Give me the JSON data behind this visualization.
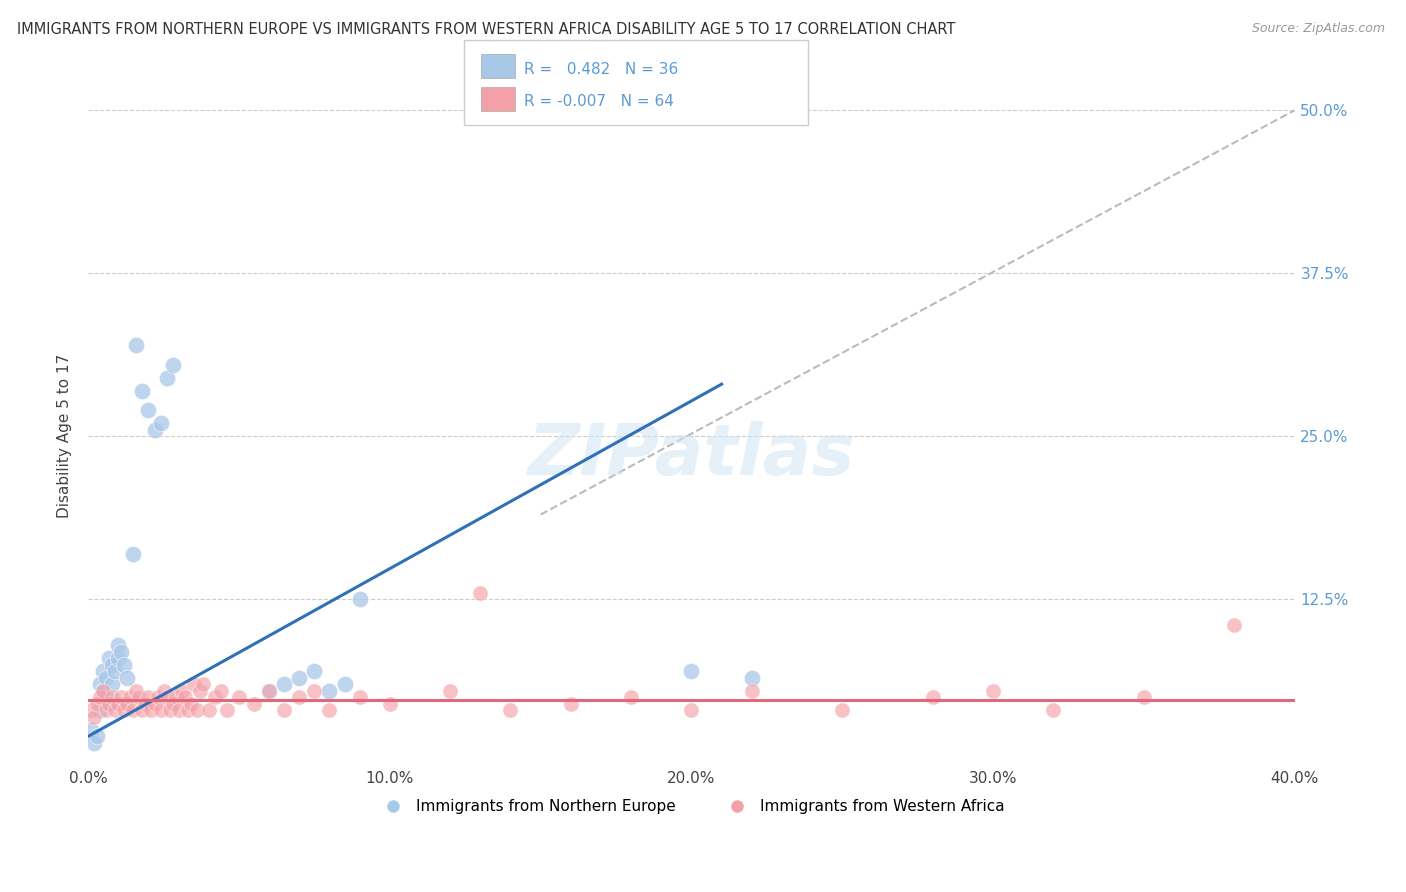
{
  "title": "IMMIGRANTS FROM NORTHERN EUROPE VS IMMIGRANTS FROM WESTERN AFRICA DISABILITY AGE 5 TO 17 CORRELATION CHART",
  "source": "Source: ZipAtlas.com",
  "ylabel": "Disability Age 5 to 17",
  "xlim": [
    0.0,
    0.4
  ],
  "ylim": [
    0.0,
    0.5
  ],
  "xticks": [
    0.0,
    0.1,
    0.2,
    0.3,
    0.4
  ],
  "yticks": [
    0.0,
    0.125,
    0.25,
    0.375,
    0.5
  ],
  "xticklabels": [
    "0.0%",
    "10.0%",
    "20.0%",
    "30.0%",
    "40.0%"
  ],
  "yticklabels_right": [
    "",
    "12.5%",
    "25.0%",
    "37.5%",
    "50.0%"
  ],
  "legend_labels": [
    "Immigrants from Northern Europe",
    "Immigrants from Western Africa"
  ],
  "R_blue": 0.482,
  "N_blue": 36,
  "R_pink": -0.007,
  "N_pink": 64,
  "blue_color": "#a8c8e8",
  "pink_color": "#f4a0a8",
  "blue_line_color": "#3070b8",
  "pink_line_color": "#e06878",
  "watermark": "ZIPatlas",
  "blue_scatter_x": [
    0.001,
    0.002,
    0.003,
    0.004,
    0.004,
    0.005,
    0.005,
    0.006,
    0.006,
    0.007,
    0.007,
    0.008,
    0.008,
    0.009,
    0.01,
    0.01,
    0.011,
    0.012,
    0.013,
    0.015,
    0.016,
    0.018,
    0.02,
    0.022,
    0.024,
    0.026,
    0.028,
    0.06,
    0.065,
    0.07,
    0.075,
    0.08,
    0.085,
    0.09,
    0.2,
    0.22
  ],
  "blue_scatter_y": [
    0.025,
    0.015,
    0.02,
    0.04,
    0.06,
    0.055,
    0.07,
    0.065,
    0.05,
    0.045,
    0.08,
    0.06,
    0.075,
    0.07,
    0.08,
    0.09,
    0.085,
    0.075,
    0.065,
    0.16,
    0.32,
    0.285,
    0.27,
    0.255,
    0.26,
    0.295,
    0.305,
    0.055,
    0.06,
    0.065,
    0.07,
    0.055,
    0.06,
    0.125,
    0.07,
    0.065
  ],
  "pink_scatter_x": [
    0.001,
    0.002,
    0.003,
    0.004,
    0.005,
    0.006,
    0.007,
    0.008,
    0.009,
    0.01,
    0.011,
    0.012,
    0.013,
    0.014,
    0.015,
    0.016,
    0.017,
    0.018,
    0.019,
    0.02,
    0.021,
    0.022,
    0.023,
    0.024,
    0.025,
    0.026,
    0.027,
    0.028,
    0.029,
    0.03,
    0.031,
    0.032,
    0.033,
    0.034,
    0.035,
    0.036,
    0.037,
    0.038,
    0.04,
    0.042,
    0.044,
    0.046,
    0.05,
    0.055,
    0.06,
    0.065,
    0.07,
    0.075,
    0.08,
    0.09,
    0.1,
    0.12,
    0.13,
    0.14,
    0.16,
    0.18,
    0.2,
    0.22,
    0.25,
    0.28,
    0.3,
    0.32,
    0.35,
    0.38
  ],
  "pink_scatter_y": [
    0.04,
    0.035,
    0.045,
    0.05,
    0.055,
    0.04,
    0.045,
    0.05,
    0.04,
    0.045,
    0.05,
    0.04,
    0.045,
    0.05,
    0.04,
    0.055,
    0.05,
    0.04,
    0.045,
    0.05,
    0.04,
    0.045,
    0.05,
    0.04,
    0.055,
    0.05,
    0.04,
    0.045,
    0.05,
    0.04,
    0.055,
    0.05,
    0.04,
    0.045,
    0.06,
    0.04,
    0.055,
    0.06,
    0.04,
    0.05,
    0.055,
    0.04,
    0.05,
    0.045,
    0.055,
    0.04,
    0.05,
    0.055,
    0.04,
    0.05,
    0.045,
    0.055,
    0.13,
    0.04,
    0.045,
    0.05,
    0.04,
    0.055,
    0.04,
    0.05,
    0.055,
    0.04,
    0.05,
    0.105
  ],
  "dashed_line_x": [
    0.15,
    0.4
  ],
  "dashed_line_y": [
    0.19,
    0.5
  ],
  "blue_line_x": [
    0.0,
    0.21
  ],
  "blue_line_y": [
    0.02,
    0.29
  ],
  "pink_line_y_const": 0.048
}
